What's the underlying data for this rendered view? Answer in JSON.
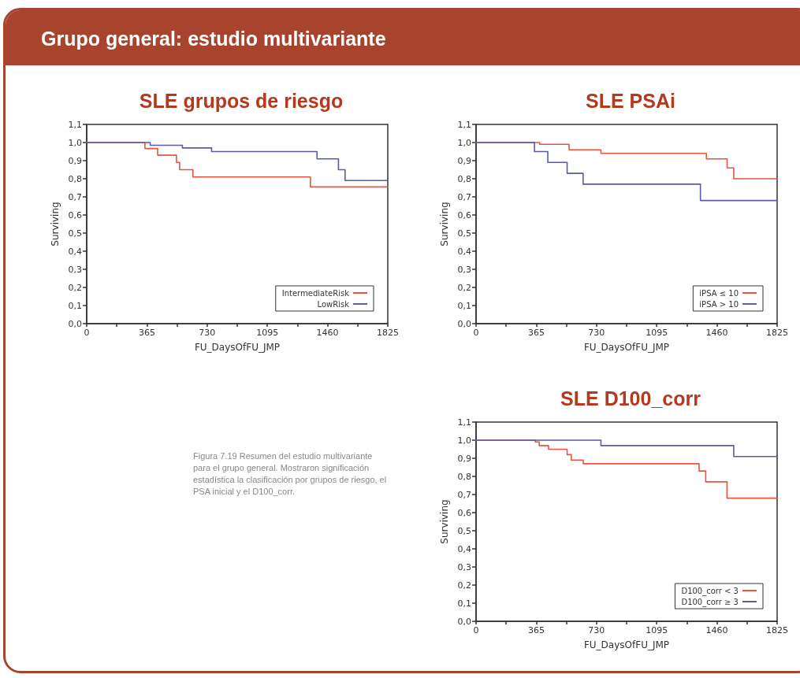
{
  "chart_data": [
    {
      "type": "step",
      "title": "SLE grupos de riesgo",
      "xlabel": "FU_DaysOfFU_JMP",
      "ylabel": "Surviving",
      "annotations": [
        "Grupo general: estudio multivariante",
        "Figura 7.19 Resumen del estudio multivariante para el grupo general. Mostraron significación estadística la clasificación por grupos de riesgo, el PSA inicial y el D100_corr."
      ],
      "series": [
        {
          "name": "IntermediateRisk",
          "color": "#e8553c",
          "x": [
            0,
            353,
            430,
            544,
            563,
            644,
            1356,
            1825
          ],
          "values": [
            1.0,
            0.967,
            0.93,
            0.89,
            0.85,
            0.81,
            0.755,
            0.755
          ]
        },
        {
          "name": "LowRisk",
          "color": "#5b5ba6",
          "x": [
            0,
            385,
            580,
            757,
            1396,
            1526,
            1566,
            1825
          ],
          "values": [
            1.0,
            0.985,
            0.97,
            0.95,
            0.91,
            0.85,
            0.79,
            0.79
          ]
        }
      ],
      "xlim": [
        0,
        1825
      ],
      "xticks": [
        0,
        {
          "value": 182.5,
          "label": null
        },
        365,
        {
          "value": 547.5,
          "label": null
        },
        730,
        {
          "value": 912.5,
          "label": null
        },
        1095,
        {
          "value": 1277.5,
          "label": null
        },
        1460,
        {
          "value": 1642.5,
          "label": null
        },
        1825
      ],
      "ylim": [
        0,
        1.1
      ],
      "yticks": [
        {
          "value": 0,
          "label": "0,0"
        },
        {
          "value": 0.1,
          "label": "0,1"
        },
        {
          "value": 0.2,
          "label": "0,2"
        },
        {
          "value": 0.3,
          "label": "0,3"
        },
        {
          "value": 0.4,
          "label": "0,4"
        },
        {
          "value": 0.5,
          "label": "0,5"
        },
        {
          "value": 0.6,
          "label": "0,6"
        },
        {
          "value": 0.7,
          "label": "0,7"
        },
        {
          "value": 0.8,
          "label": "0,8"
        },
        {
          "value": 0.9,
          "label": "0,9"
        },
        {
          "value": 1.0,
          "label": "1,0"
        },
        {
          "value": 1.1,
          "label": "1,1"
        }
      ],
      "legend": "bottom right",
      "grid": false,
      "marker": "none",
      "line_style": "solid"
    },
    {
      "type": "step",
      "title": "SLE PSAi",
      "xlabel": "FU_DaysOfFU_JMP",
      "ylabel": "Surviving",
      "series": [
        {
          "name": "iPSA ≤ 10",
          "color": "#e8553c",
          "x": [
            0,
            386,
            564,
            757,
            1396,
            1522,
            1562,
            1825
          ],
          "values": [
            1.0,
            0.99,
            0.96,
            0.94,
            0.91,
            0.86,
            0.8,
            0.8
          ]
        },
        {
          "name": "iPSA > 10",
          "color": "#5b5ba6",
          "x": [
            0,
            354,
            435,
            552,
            649,
            1360,
            1825
          ],
          "values": [
            1.0,
            0.95,
            0.89,
            0.83,
            0.77,
            0.68,
            0.68
          ]
        }
      ],
      "xlim": [
        0,
        1825
      ],
      "xticks": [
        0,
        {
          "value": 182.5,
          "label": null
        },
        365,
        {
          "value": 547.5,
          "label": null
        },
        730,
        {
          "value": 912.5,
          "label": null
        },
        1095,
        {
          "value": 1277.5,
          "label": null
        },
        1460,
        {
          "value": 1642.5,
          "label": null
        },
        1825
      ],
      "ylim": [
        0,
        1.1
      ],
      "yticks": [
        {
          "value": 0,
          "label": "0,0"
        },
        {
          "value": 0.1,
          "label": "0,1"
        },
        {
          "value": 0.2,
          "label": "0,2"
        },
        {
          "value": 0.3,
          "label": "0,3"
        },
        {
          "value": 0.4,
          "label": "0,4"
        },
        {
          "value": 0.5,
          "label": "0,5"
        },
        {
          "value": 0.6,
          "label": "0,6"
        },
        {
          "value": 0.7,
          "label": "0,7"
        },
        {
          "value": 0.8,
          "label": "0,8"
        },
        {
          "value": 0.9,
          "label": "0,9"
        },
        {
          "value": 1.0,
          "label": "1,0"
        },
        {
          "value": 1.1,
          "label": "1,1"
        }
      ],
      "legend": "bottom right",
      "grid": false,
      "marker": "none",
      "line_style": "solid"
    },
    {
      "type": "step",
      "title": "SLE D100_corr",
      "xlabel": "FU_DaysOfFU_JMP",
      "ylabel": "Surviving",
      "series": [
        {
          "name": "D100_corr < 3",
          "color": "#e8553c",
          "x": [
            0,
            359,
            383,
            439,
            552,
            577,
            650,
            1352,
            1392,
            1521,
            1825
          ],
          "values": [
            1.0,
            0.99,
            0.97,
            0.95,
            0.92,
            0.89,
            0.87,
            0.83,
            0.77,
            0.68,
            0.68
          ]
        },
        {
          "name": "D100_corr ≥ 3",
          "color": "#5b5ba6",
          "x": [
            0,
            757,
            1562,
            1825
          ],
          "values": [
            1.0,
            0.97,
            0.91,
            0.91
          ]
        }
      ],
      "xlim": [
        0,
        1825
      ],
      "xticks": [
        0,
        {
          "value": 182.5,
          "label": null
        },
        365,
        {
          "value": 547.5,
          "label": null
        },
        730,
        {
          "value": 912.5,
          "label": null
        },
        1095,
        {
          "value": 1277.5,
          "label": null
        },
        1460,
        {
          "value": 1642.5,
          "label": null
        },
        1825
      ],
      "ylim": [
        0,
        1.1
      ],
      "yticks": [
        {
          "value": 0,
          "label": "0,0"
        },
        {
          "value": 0.1,
          "label": "0,1"
        },
        {
          "value": 0.2,
          "label": "0,2"
        },
        {
          "value": 0.3,
          "label": "0,3"
        },
        {
          "value": 0.4,
          "label": "0,4"
        },
        {
          "value": 0.5,
          "label": "0,5"
        },
        {
          "value": 0.6,
          "label": "0,6"
        },
        {
          "value": 0.7,
          "label": "0,7"
        },
        {
          "value": 0.8,
          "label": "0,8"
        },
        {
          "value": 0.9,
          "label": "0,9"
        },
        {
          "value": 1.0,
          "label": "1,0"
        },
        {
          "value": 1.1,
          "label": "1,1"
        }
      ],
      "legend": "bottom right",
      "grid": false,
      "marker": "none",
      "line_style": "solid"
    }
  ]
}
